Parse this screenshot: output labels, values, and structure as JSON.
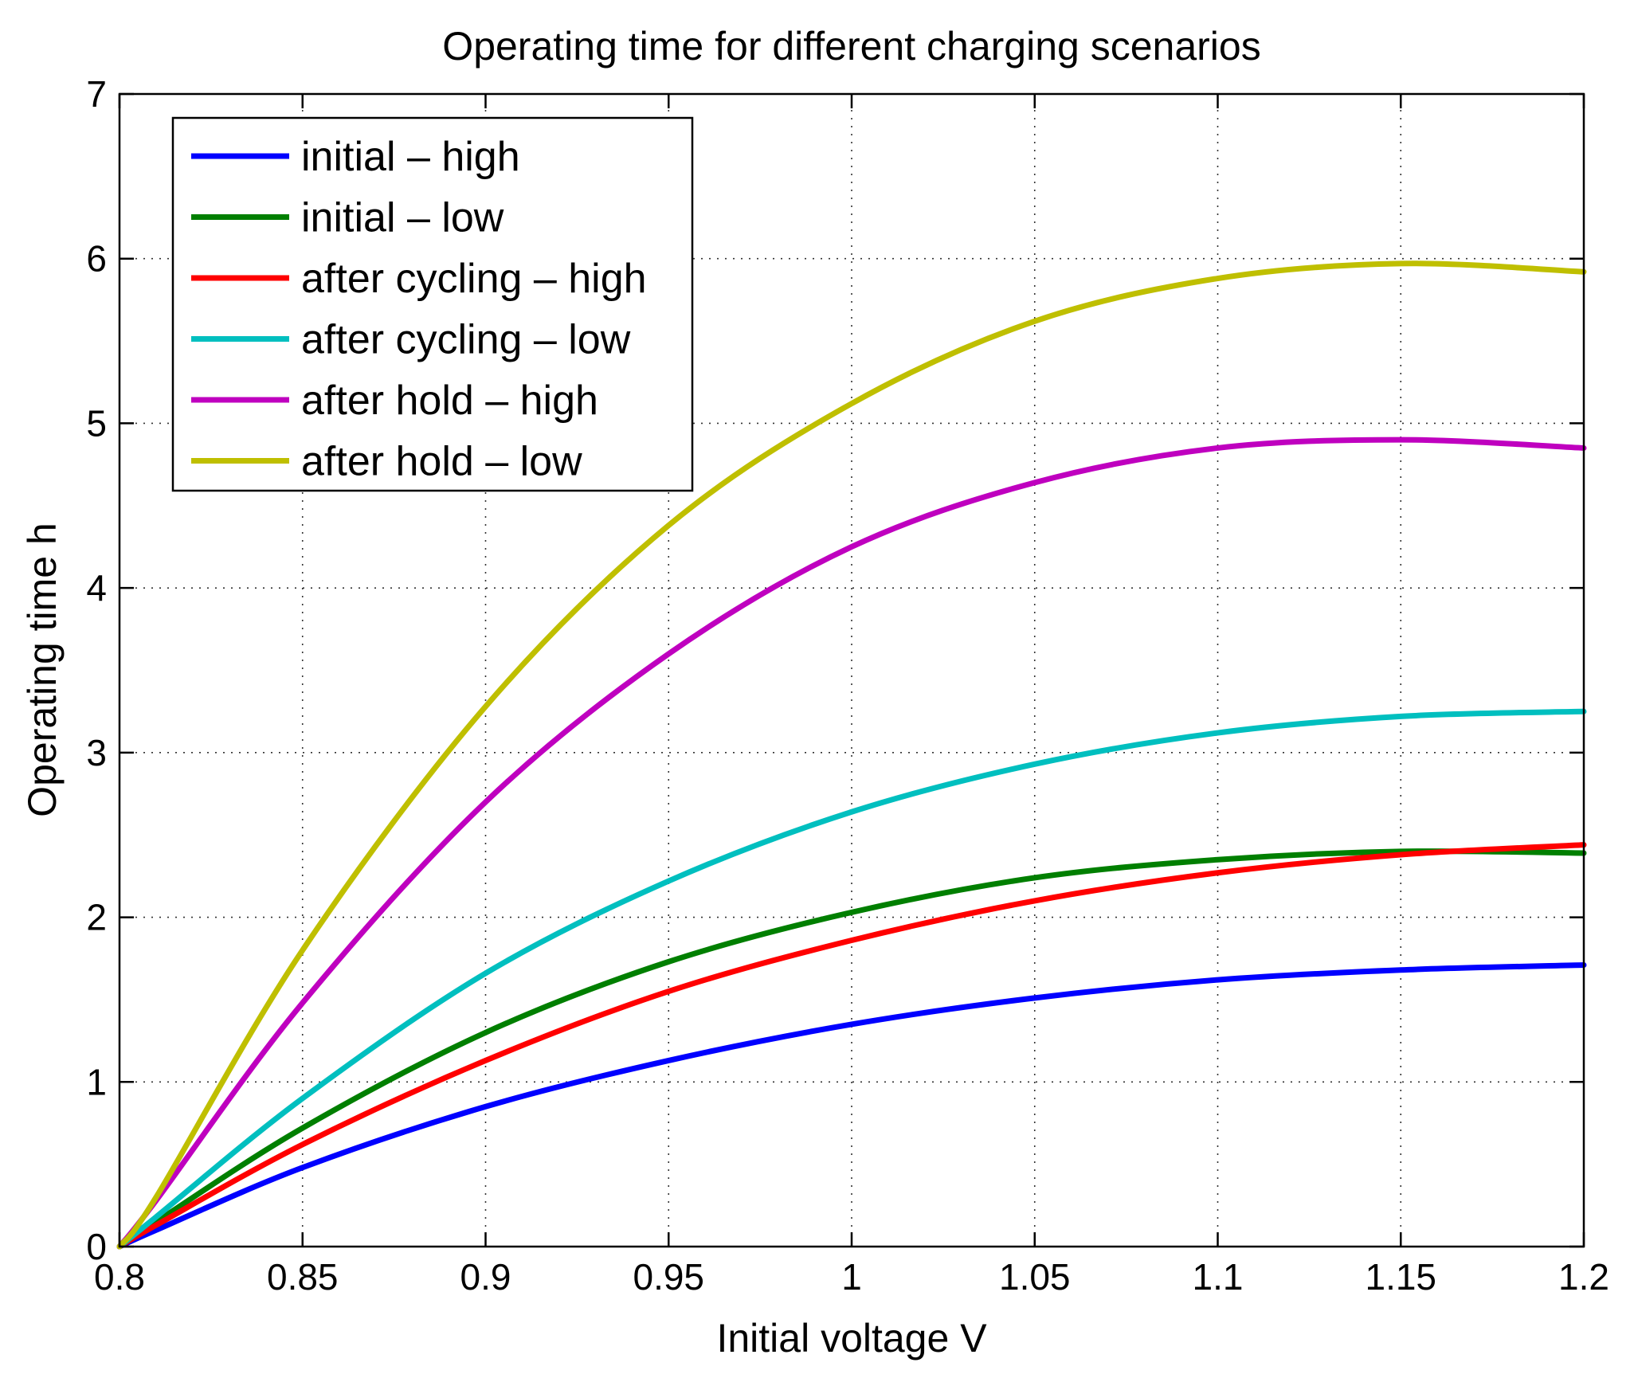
{
  "chart_data": {
    "type": "line",
    "title": "Operating time for different charging scenarios",
    "xlabel": "Initial voltage V",
    "ylabel": "Operating time h",
    "xlim": [
      0.8,
      1.2
    ],
    "ylim": [
      0,
      7
    ],
    "xticks": [
      0.8,
      0.85,
      0.9,
      0.95,
      1,
      1.05,
      1.1,
      1.15,
      1.2
    ],
    "xtick_labels": [
      "0.8",
      "0.85",
      "0.9",
      "0.95",
      "1",
      "1.05",
      "1.1",
      "1.15",
      "1.2"
    ],
    "yticks": [
      0,
      1,
      2,
      3,
      4,
      5,
      6,
      7
    ],
    "ytick_labels": [
      "0",
      "1",
      "2",
      "3",
      "4",
      "5",
      "6",
      "7"
    ],
    "grid": true,
    "legend_position": "top-left",
    "x": [
      0.8,
      0.81,
      0.85,
      0.9,
      0.95,
      1.0,
      1.05,
      1.1,
      1.15,
      1.2
    ],
    "series": [
      {
        "name": "initial – high",
        "color": "#0000ff",
        "values": [
          0,
          0.1,
          0.48,
          0.85,
          1.13,
          1.35,
          1.51,
          1.62,
          1.68,
          1.71
        ]
      },
      {
        "name": "initial – low",
        "color": "#007f00",
        "values": [
          0,
          0.15,
          0.72,
          1.3,
          1.73,
          2.03,
          2.24,
          2.35,
          2.4,
          2.39
        ]
      },
      {
        "name": "after cycling – high",
        "color": "#ff0000",
        "values": [
          0,
          0.13,
          0.62,
          1.13,
          1.55,
          1.86,
          2.1,
          2.27,
          2.38,
          2.44
        ]
      },
      {
        "name": "after cycling – low",
        "color": "#00bfbf",
        "values": [
          0,
          0.18,
          0.9,
          1.66,
          2.22,
          2.64,
          2.93,
          3.12,
          3.22,
          3.25
        ]
      },
      {
        "name": "after hold – high",
        "color": "#bf00bf",
        "values": [
          0,
          0.28,
          1.48,
          2.7,
          3.6,
          4.25,
          4.64,
          4.85,
          4.9,
          4.85
        ]
      },
      {
        "name": "after hold – low",
        "color": "#bfbf00",
        "values": [
          0,
          0.3,
          1.8,
          3.28,
          4.38,
          5.12,
          5.62,
          5.88,
          5.97,
          5.92
        ]
      }
    ]
  }
}
